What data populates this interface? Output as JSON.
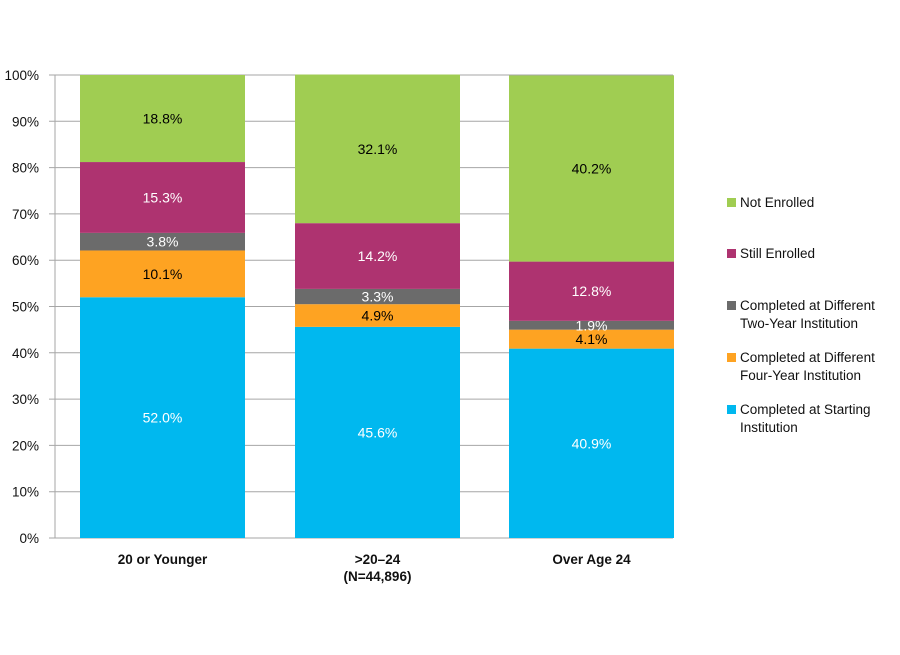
{
  "chart_data": {
    "type": "bar",
    "stacked": true,
    "categories": [
      {
        "label": "20 or Younger",
        "sublabel": ""
      },
      {
        "label": ">20–24",
        "sublabel": "(N=44,896)"
      },
      {
        "label": "Over Age 24",
        "sublabel": ""
      }
    ],
    "series": [
      {
        "name": "Completed at Starting Institution",
        "color": "#00b8ef",
        "label_color": "#ffffff",
        "values": [
          52.0,
          45.6,
          40.9
        ]
      },
      {
        "name": "Completed at Different Four-Year Institution",
        "color": "#fea322",
        "label_color": "#000000",
        "values": [
          10.1,
          4.9,
          4.1
        ]
      },
      {
        "name": "Completed at Different Two-Year Institution",
        "color": "#6b6b6b",
        "label_color": "#ffffff",
        "values": [
          3.8,
          3.3,
          1.9
        ]
      },
      {
        "name": "Still Enrolled",
        "color": "#ae3370",
        "label_color": "#ffffff",
        "values": [
          15.3,
          14.2,
          12.8
        ]
      },
      {
        "name": "Not Enrolled",
        "color": "#a0cd52",
        "label_color": "#000000",
        "values": [
          18.8,
          32.1,
          40.2
        ]
      }
    ],
    "data_labels": [
      [
        "52.0%",
        "45.6%",
        "40.9%"
      ],
      [
        "10.1%",
        "4.9%",
        "4.1%"
      ],
      [
        "3.8%",
        "3.3%",
        "1.9%"
      ],
      [
        "15.3%",
        "14.2%",
        "12.8%"
      ],
      [
        "18.8%",
        "32.1%",
        "40.2%"
      ]
    ],
    "yticks": [
      "0%",
      "10%",
      "20%",
      "30%",
      "40%",
      "50%",
      "60%",
      "70%",
      "80%",
      "90%",
      "100%"
    ],
    "ylim": [
      0,
      100
    ],
    "grid": true,
    "legend_position": "right",
    "legend_order": [
      "Not Enrolled",
      "Still Enrolled",
      "Completed at Different Two-Year Institution",
      "Completed at Different Four-Year Institution",
      "Completed at Starting Institution"
    ],
    "legend": [
      {
        "line1": "Not Enrolled",
        "line2": ""
      },
      {
        "line1": "Still Enrolled",
        "line2": ""
      },
      {
        "line1": "Completed at Different",
        "line2": "Two-Year Institution"
      },
      {
        "line1": "Completed at Different",
        "line2": "Four-Year Institution"
      },
      {
        "line1": "Completed at Starting",
        "line2": "Institution"
      }
    ]
  }
}
